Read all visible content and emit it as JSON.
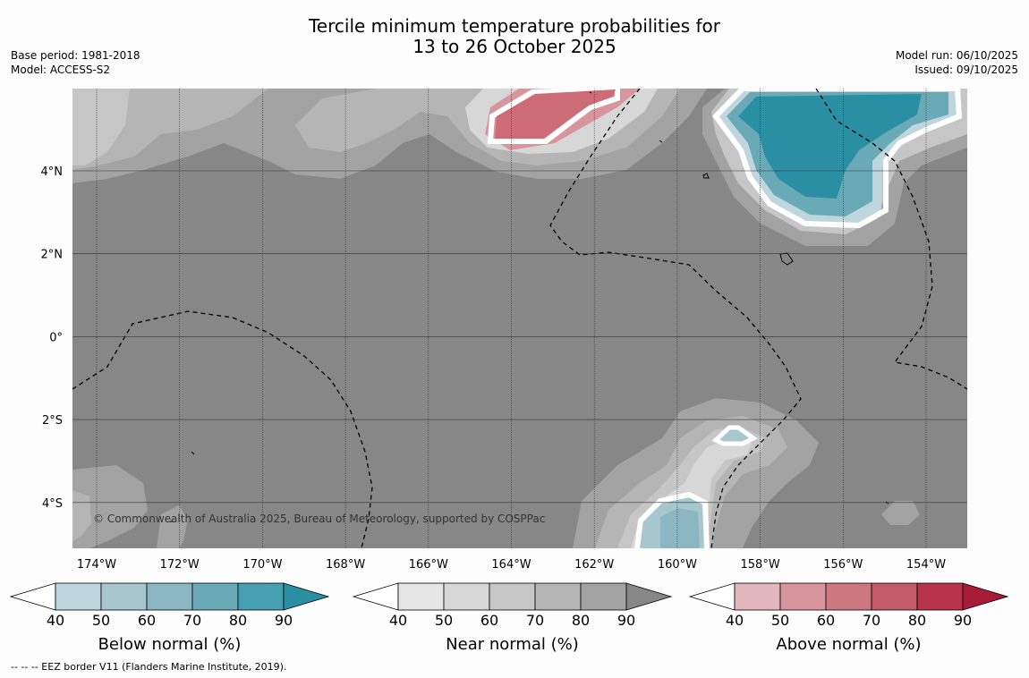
{
  "title": {
    "line1": "Tercile minimum temperature probabilities for",
    "line2": "13 to 26 October 2025"
  },
  "meta_left": {
    "base_period": "Base period: 1981-2018",
    "model": "Model: ACCESS-S2"
  },
  "meta_right": {
    "model_run": "Model run: 06/10/2025",
    "issued": "Issued: 09/10/2025"
  },
  "map": {
    "lon_ticks": [
      "174°W",
      "172°W",
      "170°W",
      "168°W",
      "166°W",
      "164°W",
      "162°W",
      "160°W",
      "158°W",
      "156°W",
      "154°W"
    ],
    "lat_ticks": [
      "4°N",
      "2°N",
      "0°",
      "2°S",
      "4°S"
    ],
    "copyright": "© Commonwealth of Australia 2025, Bureau of Meteorology, supported by COSPPac",
    "colors": {
      "base": "#878787",
      "white_contour": "#ffffff"
    }
  },
  "colorbars": [
    {
      "label": "Below normal (%)",
      "ticks": [
        "40",
        "50",
        "60",
        "70",
        "80",
        "90"
      ],
      "colors": [
        "#ffffff",
        "#bfd6dd",
        "#a7c7cf",
        "#8db6c3",
        "#6aaab7",
        "#45a0b1",
        "#2b8fa3"
      ]
    },
    {
      "label": "Near normal (%)",
      "ticks": [
        "40",
        "50",
        "60",
        "70",
        "80",
        "90"
      ],
      "colors": [
        "#ffffff",
        "#e6e6e6",
        "#d7d7d7",
        "#c6c6c6",
        "#b5b5b5",
        "#a3a3a3",
        "#878787"
      ]
    },
    {
      "label": "Above normal (%)",
      "ticks": [
        "40",
        "50",
        "60",
        "70",
        "80",
        "90"
      ],
      "colors": [
        "#ffffff",
        "#e3b8bd",
        "#d9959d",
        "#cd7880",
        "#c35a67",
        "#b8344b",
        "#a81c39"
      ]
    }
  ],
  "footnote": "--  --  -- EEZ border V11 (Flanders Marine Institute, 2019)."
}
